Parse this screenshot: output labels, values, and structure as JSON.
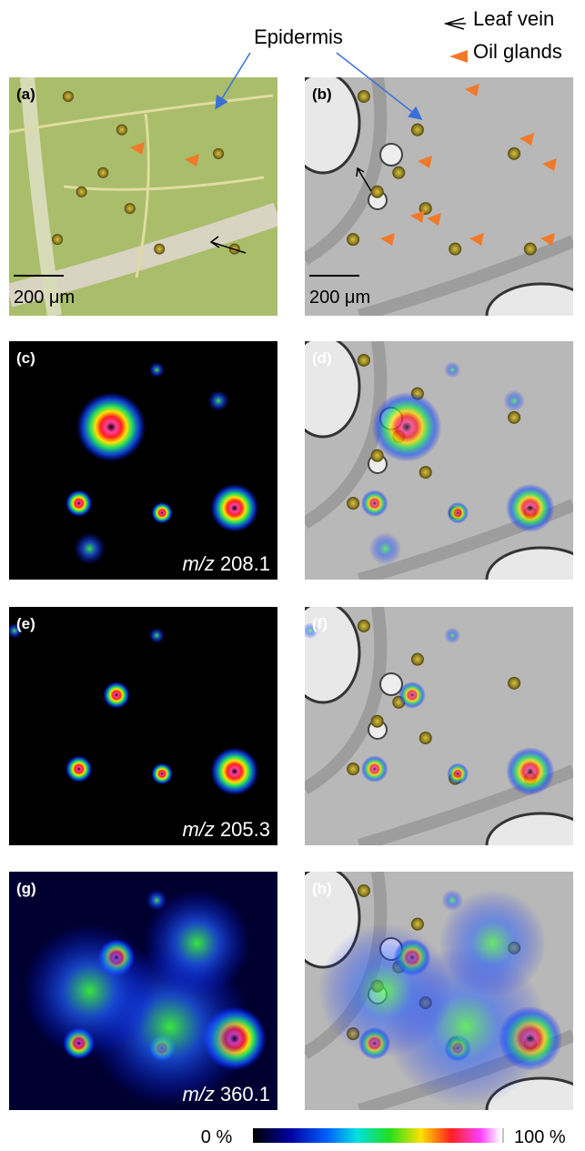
{
  "figure": {
    "annotations": {
      "epidermis": "Epidermis",
      "leaf_vein": "Leaf vein",
      "oil_glands": "Oil glands"
    },
    "panels": [
      {
        "label": "(a)",
        "scale_bar": "200 μm"
      },
      {
        "label": "(b)",
        "scale_bar": "200 μm"
      },
      {
        "label": "(c)",
        "mz_prefix": "m/z",
        "mz_value": "208.1"
      },
      {
        "label": "(d)"
      },
      {
        "label": "(e)",
        "mz_prefix": "m/z",
        "mz_value": "205.3"
      },
      {
        "label": "(f)"
      },
      {
        "label": "(g)",
        "mz_prefix": "m/z",
        "mz_value": "360.1"
      },
      {
        "label": "(h)"
      }
    ],
    "colorbar": {
      "min_label": "0 %",
      "max_label": "100 %"
    }
  }
}
